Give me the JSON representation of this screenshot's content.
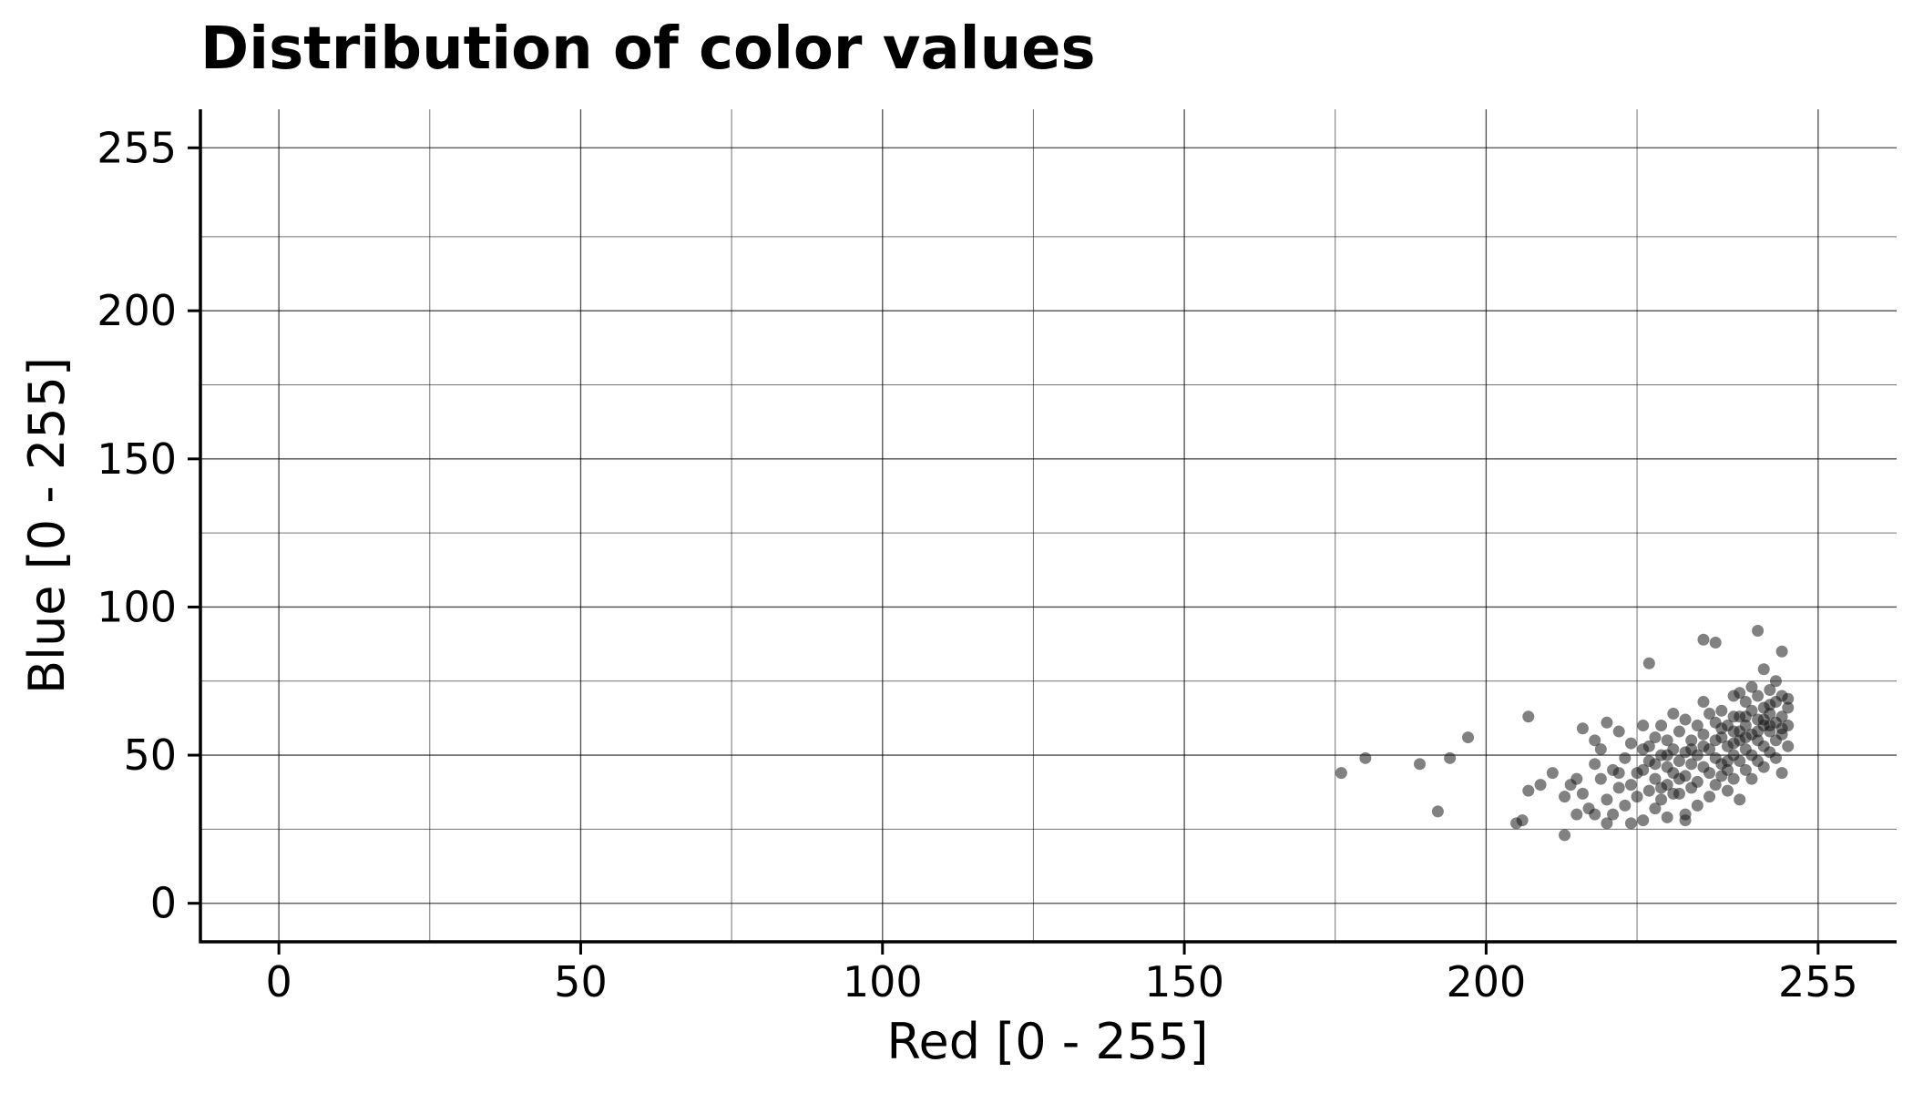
{
  "chart_data": {
    "type": "scatter",
    "title": "Distribution of color values",
    "xlabel": "Red [0 - 255]",
    "ylabel": "Blue [0 - 255]",
    "xlim": [
      -13,
      268
    ],
    "ylim": [
      -13,
      268
    ],
    "xticks": [
      0,
      50,
      100,
      150,
      200,
      255
    ],
    "yticks": [
      0,
      50,
      100,
      150,
      200,
      255
    ],
    "grid": true,
    "point_color": "#1a1a1a",
    "series": [
      {
        "points": [
          [
            176,
            44
          ],
          [
            180,
            49
          ],
          [
            189,
            47
          ],
          [
            192,
            31
          ],
          [
            194,
            49
          ],
          [
            197,
            56
          ],
          [
            205,
            27
          ],
          [
            206,
            28
          ],
          [
            207,
            38
          ],
          [
            207,
            63
          ],
          [
            209,
            40
          ],
          [
            211,
            44
          ],
          [
            213,
            23
          ],
          [
            213,
            36
          ],
          [
            214,
            40
          ],
          [
            215,
            42
          ],
          [
            216,
            59
          ],
          [
            216,
            37
          ],
          [
            217,
            32
          ],
          [
            218,
            55
          ],
          [
            218,
            30
          ],
          [
            219,
            52
          ],
          [
            219,
            42
          ],
          [
            220,
            27
          ],
          [
            220,
            61
          ],
          [
            220,
            35
          ],
          [
            221,
            45
          ],
          [
            221,
            30
          ],
          [
            222,
            58
          ],
          [
            222,
            39
          ],
          [
            223,
            49
          ],
          [
            223,
            33
          ],
          [
            224,
            54
          ],
          [
            224,
            27
          ],
          [
            225,
            44
          ],
          [
            225,
            36
          ],
          [
            226,
            60
          ],
          [
            226,
            52
          ],
          [
            226,
            28
          ],
          [
            227,
            81
          ],
          [
            227,
            48
          ],
          [
            227,
            38
          ],
          [
            228,
            56
          ],
          [
            228,
            42
          ],
          [
            228,
            32
          ],
          [
            229,
            50
          ],
          [
            229,
            35
          ],
          [
            229,
            60
          ],
          [
            230,
            46
          ],
          [
            230,
            55
          ],
          [
            230,
            40
          ],
          [
            230,
            29
          ],
          [
            231,
            52
          ],
          [
            231,
            44
          ],
          [
            231,
            64
          ],
          [
            232,
            48
          ],
          [
            232,
            37
          ],
          [
            232,
            58
          ],
          [
            233,
            51
          ],
          [
            233,
            43
          ],
          [
            233,
            28
          ],
          [
            234,
            55
          ],
          [
            234,
            47
          ],
          [
            234,
            39
          ],
          [
            235,
            60
          ],
          [
            235,
            50
          ],
          [
            235,
            41
          ],
          [
            235,
            33
          ],
          [
            236,
            89
          ],
          [
            236,
            57
          ],
          [
            236,
            46
          ],
          [
            236,
            68
          ],
          [
            237,
            52
          ],
          [
            237,
            44
          ],
          [
            237,
            36
          ],
          [
            238,
            88
          ],
          [
            238,
            61
          ],
          [
            238,
            49
          ],
          [
            238,
            40
          ],
          [
            239,
            56
          ],
          [
            239,
            47
          ],
          [
            239,
            65
          ],
          [
            240,
            53
          ],
          [
            240,
            45
          ],
          [
            240,
            38
          ],
          [
            240,
            60
          ],
          [
            241,
            58
          ],
          [
            241,
            50
          ],
          [
            241,
            42
          ],
          [
            241,
            70
          ],
          [
            242,
            55
          ],
          [
            242,
            48
          ],
          [
            242,
            63
          ],
          [
            242,
            35
          ],
          [
            243,
            60
          ],
          [
            243,
            52
          ],
          [
            243,
            45
          ],
          [
            243,
            68
          ],
          [
            244,
            57
          ],
          [
            244,
            50
          ],
          [
            244,
            65
          ],
          [
            244,
            42
          ],
          [
            245,
            92
          ],
          [
            245,
            62
          ],
          [
            245,
            55
          ],
          [
            245,
            48
          ],
          [
            245,
            70
          ],
          [
            246,
            79
          ],
          [
            246,
            60
          ],
          [
            246,
            53
          ],
          [
            246,
            66
          ],
          [
            246,
            46
          ],
          [
            247,
            58
          ],
          [
            247,
            64
          ],
          [
            247,
            51
          ],
          [
            247,
            72
          ],
          [
            248,
            61
          ],
          [
            248,
            55
          ],
          [
            248,
            68
          ],
          [
            248,
            49
          ],
          [
            249,
            85
          ],
          [
            249,
            63
          ],
          [
            249,
            57
          ],
          [
            249,
            70
          ],
          [
            249,
            44
          ],
          [
            250,
            66
          ],
          [
            250,
            60
          ],
          [
            250,
            53
          ],
          [
            250,
            69
          ],
          [
            233,
            62
          ],
          [
            237,
            64
          ],
          [
            241,
            63
          ],
          [
            224,
            40
          ],
          [
            228,
            47
          ],
          [
            231,
            37
          ],
          [
            239,
            43
          ],
          [
            243,
            56
          ],
          [
            247,
            60
          ],
          [
            226,
            45
          ],
          [
            230,
            50
          ],
          [
            234,
            52
          ],
          [
            238,
            55
          ],
          [
            242,
            58
          ],
          [
            246,
            62
          ],
          [
            244,
            73
          ],
          [
            248,
            75
          ],
          [
            242,
            71
          ],
          [
            239,
            59
          ],
          [
            236,
            53
          ],
          [
            232,
            42
          ],
          [
            229,
            39
          ],
          [
            227,
            53
          ],
          [
            222,
            44
          ],
          [
            218,
            47
          ],
          [
            215,
            30
          ],
          [
            233,
            30
          ],
          [
            240,
            48
          ],
          [
            245,
            58
          ],
          [
            249,
            59
          ],
          [
            247,
            67
          ],
          [
            243,
            63
          ],
          [
            241,
            54
          ]
        ]
      }
    ]
  }
}
